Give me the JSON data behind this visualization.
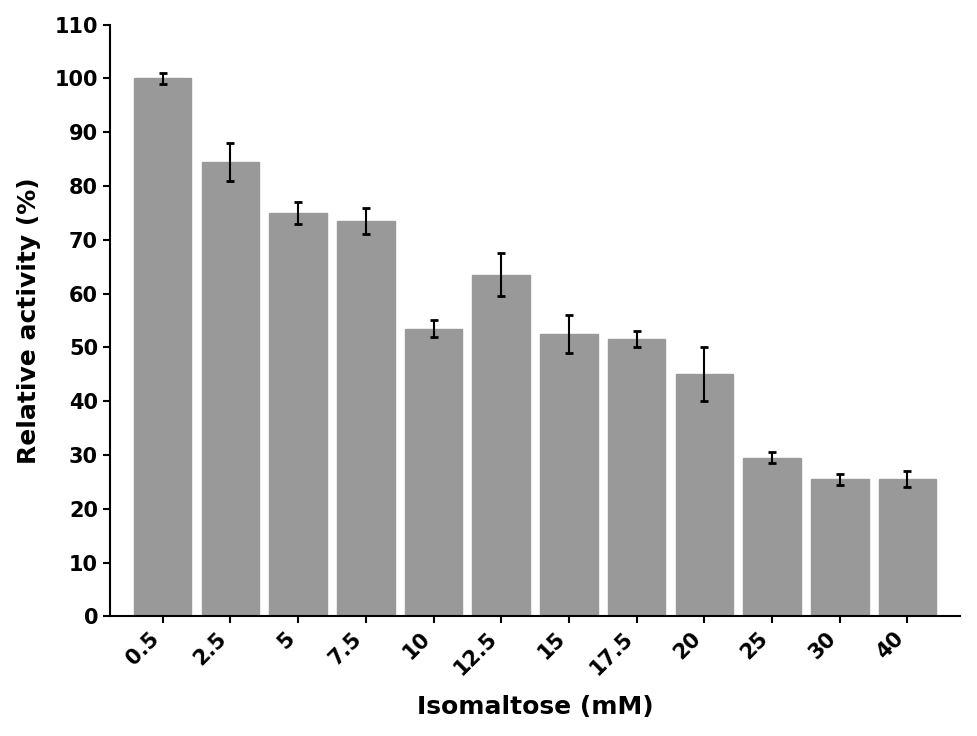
{
  "categories": [
    "0.5",
    "2.5",
    "5",
    "7.5",
    "10",
    "12.5",
    "15",
    "17.5",
    "20",
    "25",
    "30",
    "40"
  ],
  "values": [
    100.0,
    84.5,
    75.0,
    73.5,
    53.5,
    63.5,
    52.5,
    51.5,
    45.0,
    29.5,
    25.5,
    25.5
  ],
  "errors": [
    1.0,
    3.5,
    2.0,
    2.5,
    1.5,
    4.0,
    3.5,
    1.5,
    5.0,
    1.0,
    1.0,
    1.5
  ],
  "bar_color": "#999999",
  "bar_edgecolor": "#999999",
  "errorbar_color": "black",
  "errorbar_capsize": 3,
  "errorbar_linewidth": 1.5,
  "errorbar_capthick": 2.0,
  "xlabel": "Isomaltose (mM)",
  "ylabel": "Relative activity (%)",
  "ylim": [
    0,
    110
  ],
  "yticks": [
    0,
    10,
    20,
    30,
    40,
    50,
    60,
    70,
    80,
    90,
    100,
    110
  ],
  "xlabel_fontsize": 18,
  "ylabel_fontsize": 18,
  "tick_fontsize": 15,
  "xlabel_fontweight": "bold",
  "ylabel_fontweight": "bold",
  "background_color": "#ffffff",
  "bar_width": 0.85
}
